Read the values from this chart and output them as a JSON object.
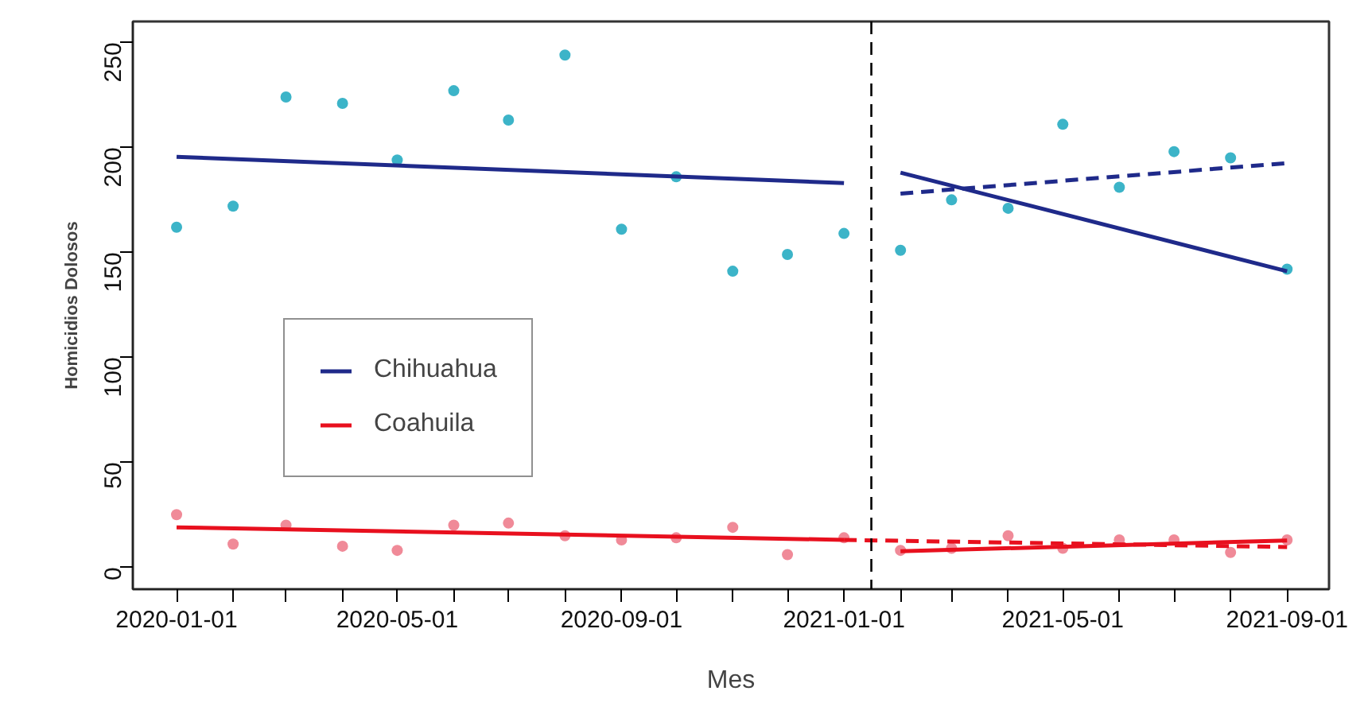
{
  "chart_data": {
    "type": "scatter",
    "xlabel": "Mes",
    "ylabel": "Homicidios Dolosos",
    "x": [
      "2020-01",
      "2020-02",
      "2020-03",
      "2020-04",
      "2020-05",
      "2020-06",
      "2020-07",
      "2020-08",
      "2020-09",
      "2020-10",
      "2020-11",
      "2020-12",
      "2021-01",
      "2021-02",
      "2021-03",
      "2021-04",
      "2021-05",
      "2021-06",
      "2021-07",
      "2021-08",
      "2021-09"
    ],
    "series": [
      {
        "color": "#3cb4c8",
        "marker": "circle",
        "values": [
          162,
          172,
          224,
          221,
          194,
          227,
          213,
          244,
          161,
          186,
          141,
          149,
          159,
          151,
          175,
          171,
          211,
          181,
          198,
          195,
          142
        ]
      },
      {
        "color": "#f08a98",
        "marker": "circle",
        "values": [
          25,
          11,
          20,
          10,
          8,
          20,
          21,
          15,
          13,
          14,
          19,
          6,
          14,
          8,
          9,
          15,
          9,
          13,
          13,
          7,
          13
        ]
      },
      {
        "type": "line",
        "name": "Chihuahua",
        "color": "#1f2a8a",
        "line_style": "solid",
        "x": [
          "2020-01",
          "2021-01"
        ],
        "values": [
          195.5,
          183
        ]
      },
      {
        "type": "line",
        "color": "#1f2a8a",
        "line_style": "solid",
        "x": [
          "2021-02",
          "2021-09"
        ],
        "values": [
          188,
          141
        ]
      },
      {
        "type": "line",
        "color": "#1f2a8a",
        "line_style": "dashed",
        "x": [
          "2021-02",
          "2021-09"
        ],
        "values": [
          178,
          192.5
        ]
      },
      {
        "type": "line",
        "name": "Coahuila",
        "color": "#e8101e",
        "line_style": "solid",
        "x": [
          "2020-01",
          "2021-01"
        ],
        "values": [
          19,
          13
        ]
      },
      {
        "type": "line",
        "color": "#e8101e",
        "line_style": "solid",
        "x": [
          "2021-02",
          "2021-09"
        ],
        "values": [
          7.6,
          12.7
        ]
      },
      {
        "type": "line",
        "color": "#e8101e",
        "line_style": "dashed",
        "x": [
          "2021-01",
          "2021-09"
        ],
        "values": [
          13,
          9.6
        ]
      }
    ],
    "ref_lines": [
      {
        "axis": "x",
        "value": "2021-01-16",
        "color": "#000000",
        "line_style": "dashed"
      }
    ],
    "xlim": [
      "2019-12-08",
      "2021-09-24"
    ],
    "xticks": [
      {
        "value": "2020-01-01",
        "label": "2020-01-01"
      },
      {
        "value": "2020-02-01",
        "label": null
      },
      {
        "value": "2020-03-01",
        "label": null
      },
      {
        "value": "2020-04-01",
        "label": null
      },
      {
        "value": "2020-05-01",
        "label": "2020-05-01"
      },
      {
        "value": "2020-06-01",
        "label": null
      },
      {
        "value": "2020-07-01",
        "label": null
      },
      {
        "value": "2020-08-01",
        "label": null
      },
      {
        "value": "2020-09-01",
        "label": "2020-09-01"
      },
      {
        "value": "2020-10-01",
        "label": null
      },
      {
        "value": "2020-11-01",
        "label": null
      },
      {
        "value": "2020-12-01",
        "label": null
      },
      {
        "value": "2021-01-01",
        "label": "2021-01-01"
      },
      {
        "value": "2021-02-01",
        "label": null
      },
      {
        "value": "2021-03-01",
        "label": null
      },
      {
        "value": "2021-04-01",
        "label": null
      },
      {
        "value": "2021-05-01",
        "label": "2021-05-01"
      },
      {
        "value": "2021-06-01",
        "label": null
      },
      {
        "value": "2021-07-01",
        "label": null
      },
      {
        "value": "2021-08-01",
        "label": null
      },
      {
        "value": "2021-09-01",
        "label": "2021-09-01"
      }
    ],
    "ylim": [
      -10.5,
      260
    ],
    "yticks": [
      0,
      50,
      100,
      150,
      200,
      250
    ],
    "grid": false,
    "legend": "left"
  }
}
